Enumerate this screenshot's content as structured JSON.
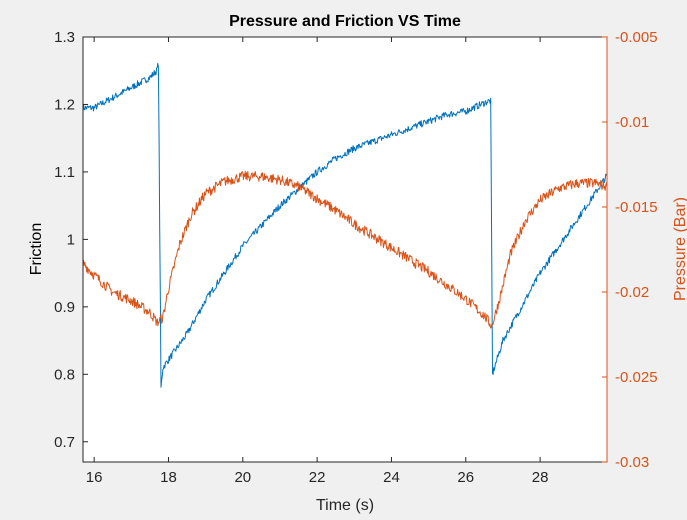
{
  "chart_data": {
    "type": "line",
    "title": "Pressure and Friction VS Time",
    "xlabel": "Time (s)",
    "ylabel_left": "Friction",
    "ylabel_right": "Pressure (Bar)",
    "xlim": [
      15.7,
      29.8
    ],
    "ylim_left": [
      0.67,
      1.3
    ],
    "ylim_right": [
      -0.03,
      -0.005
    ],
    "x_ticks": [
      16,
      18,
      20,
      22,
      24,
      26,
      28
    ],
    "x_tick_labels": [
      "16",
      "18",
      "20",
      "22",
      "24",
      "26",
      "28"
    ],
    "y_left_ticks": [
      0.7,
      0.8,
      0.9,
      1.0,
      1.1,
      1.2,
      1.3
    ],
    "y_left_tick_labels": [
      "0.7",
      "0.8",
      "0.9",
      "1",
      "1.1",
      "1.2",
      "1.3"
    ],
    "y_right_ticks": [
      -0.03,
      -0.025,
      -0.02,
      -0.015,
      -0.01,
      -0.005
    ],
    "y_right_tick_labels": [
      "-0.03",
      "-0.025",
      "-0.02",
      "-0.015",
      "-0.01",
      "-0.005"
    ],
    "grid": false,
    "legend": "none",
    "series": [
      {
        "axis": "left",
        "color": "#0072bd",
        "x": [
          15.7,
          16.0,
          16.5,
          17.0,
          17.5,
          17.68,
          17.73,
          17.8,
          17.85,
          18.5,
          19.0,
          19.5,
          20.0,
          20.5,
          21.0,
          21.5,
          22.0,
          22.5,
          23.0,
          23.5,
          24.0,
          24.5,
          25.0,
          25.5,
          26.0,
          26.4,
          26.62,
          26.67,
          26.72,
          26.8,
          27.0,
          27.5,
          28.0,
          28.5,
          29.0,
          29.5,
          29.8
        ],
        "y": [
          1.195,
          1.195,
          1.21,
          1.225,
          1.24,
          1.25,
          1.26,
          0.78,
          0.81,
          0.86,
          0.91,
          0.95,
          0.99,
          1.02,
          1.05,
          1.075,
          1.1,
          1.12,
          1.135,
          1.145,
          1.155,
          1.165,
          1.175,
          1.185,
          1.19,
          1.2,
          1.205,
          1.205,
          0.8,
          0.815,
          0.85,
          0.9,
          0.95,
          0.99,
          1.03,
          1.07,
          1.095
        ]
      },
      {
        "axis": "right",
        "color": "#d95319",
        "x": [
          15.7,
          16.0,
          16.5,
          17.0,
          17.5,
          17.7,
          17.85,
          18.0,
          18.3,
          18.6,
          19.0,
          19.5,
          20.0,
          20.5,
          21.0,
          21.5,
          22.0,
          22.5,
          23.0,
          23.5,
          24.0,
          24.5,
          25.0,
          25.5,
          26.0,
          26.5,
          26.7,
          26.9,
          27.2,
          27.6,
          28.0,
          28.5,
          29.0,
          29.5,
          29.8
        ],
        "y": [
          -0.0183,
          -0.019,
          -0.02,
          -0.0205,
          -0.0212,
          -0.0218,
          -0.0215,
          -0.0198,
          -0.0172,
          -0.0155,
          -0.0142,
          -0.0135,
          -0.0132,
          -0.0132,
          -0.0134,
          -0.0138,
          -0.0145,
          -0.0152,
          -0.016,
          -0.0167,
          -0.0174,
          -0.0181,
          -0.0188,
          -0.0196,
          -0.0204,
          -0.0214,
          -0.022,
          -0.0205,
          -0.0178,
          -0.0158,
          -0.0146,
          -0.0139,
          -0.0136,
          -0.0136,
          -0.0138
        ]
      }
    ]
  }
}
